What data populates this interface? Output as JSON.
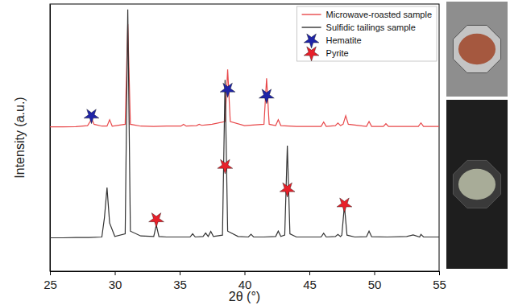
{
  "chart_data": {
    "type": "line",
    "xlabel": "2θ (°)",
    "ylabel": "Intensity (a.u.)",
    "xlim": [
      25,
      55
    ],
    "xticks": [
      25,
      30,
      35,
      40,
      45,
      50,
      55
    ],
    "ylim": [
      0,
      100
    ],
    "tick_labels": "x",
    "legend": "top-right",
    "series": [
      {
        "name": "Microwave-roasted sample",
        "type": "line",
        "color": "#e8484a",
        "line_style": "solid",
        "x": [
          25,
          26,
          27,
          27.9,
          28.1,
          28.2,
          28.4,
          29,
          29.4,
          29.6,
          29.8,
          30.8,
          31.0,
          31.2,
          32,
          33,
          34,
          35.1,
          35.3,
          35.5,
          36.3,
          36.5,
          36.7,
          37.5,
          38.5,
          38.7,
          38.9,
          40,
          41.5,
          41.7,
          41.9,
          42.4,
          42.6,
          42.8,
          44,
          45.9,
          46.1,
          46.3,
          47.0,
          47.2,
          47.4,
          47.6,
          47.8,
          48.0,
          49.4,
          49.6,
          49.8,
          50.7,
          50.9,
          51.1,
          52.5,
          53.4,
          53.6,
          53.8,
          55
        ],
        "values": [
          54,
          54,
          54.1,
          54.5,
          56,
          57.3,
          55,
          54.3,
          54.3,
          56.7,
          54.3,
          55,
          92.5,
          55,
          54.3,
          54.2,
          54.3,
          54.3,
          55,
          54.3,
          54.5,
          55,
          54.6,
          55,
          56,
          75.5,
          56,
          54.5,
          55,
          72.2,
          55,
          54.5,
          56.7,
          54.5,
          54.2,
          54.2,
          55.8,
          54.2,
          54.5,
          55.5,
          54.5,
          55,
          58.2,
          55,
          54.2,
          56,
          54.2,
          54.2,
          55.2,
          54.2,
          54.2,
          54.2,
          55.5,
          54.2,
          54.2
        ]
      },
      {
        "name": "Sulfidic tailings sample",
        "type": "line",
        "color": "#333333",
        "line_style": "solid",
        "x": [
          25,
          26,
          27,
          28,
          29,
          29.2,
          29.4,
          29.6,
          30,
          30.8,
          31.0,
          31.2,
          32,
          33.0,
          33.2,
          33.4,
          34,
          35,
          35.8,
          36.0,
          36.2,
          36.8,
          37.0,
          37.2,
          37.4,
          37.6,
          38.3,
          38.5,
          38.7,
          39.5,
          40.3,
          40.5,
          40.7,
          41.5,
          42.4,
          42.6,
          42.8,
          43.1,
          43.3,
          43.5,
          44,
          45,
          45.9,
          46.1,
          46.3,
          47.0,
          47.2,
          47.4,
          47.5,
          47.7,
          47.9,
          48.5,
          49.4,
          49.6,
          49.8,
          51,
          52.5,
          53.0,
          53.5,
          53.6,
          53.8,
          55
        ],
        "values": [
          12.5,
          12.5,
          12.6,
          12.6,
          12.8,
          20,
          31.3,
          18,
          13,
          14,
          98,
          15,
          13.2,
          13,
          17.3,
          13,
          12.8,
          12.8,
          12.8,
          14,
          12.8,
          13,
          14.3,
          13,
          14.9,
          13,
          13.5,
          71.6,
          15,
          13,
          12.8,
          13.8,
          12.8,
          12.8,
          13,
          15,
          13,
          13.5,
          47,
          14,
          12.8,
          12.8,
          12.8,
          14.2,
          12.8,
          13,
          13.8,
          13,
          13.5,
          24.5,
          13.5,
          12.8,
          12.9,
          15,
          12.9,
          12.8,
          13,
          13.6,
          12.8,
          13.8,
          12.8,
          12.8
        ]
      },
      {
        "name": "Hematite",
        "type": "scatter",
        "marker": "star",
        "color": "#1f24a8",
        "x": [
          28.2,
          38.7,
          41.7
        ],
        "values": [
          58.2,
          68,
          65.7
        ]
      },
      {
        "name": "Pyrite",
        "type": "scatter",
        "marker": "star",
        "color": "#e8202a",
        "x": [
          33.2,
          38.5,
          43.3,
          47.7
        ],
        "values": [
          19.4,
          39.4,
          30.7,
          25
        ]
      }
    ]
  }
}
